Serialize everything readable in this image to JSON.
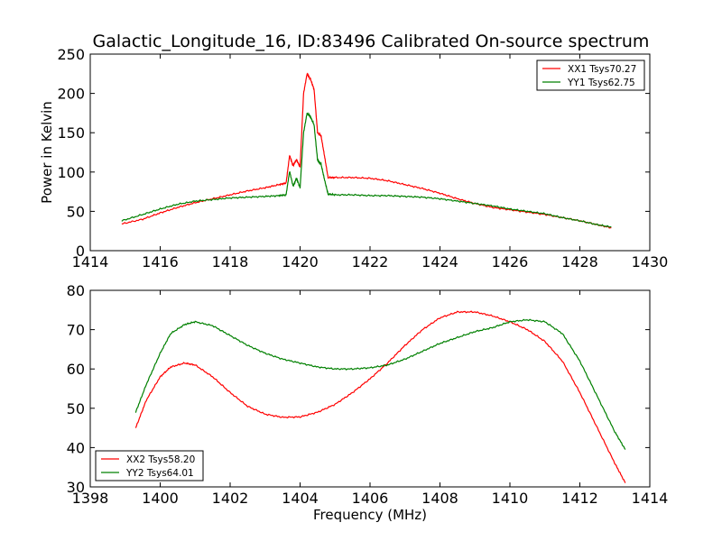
{
  "figure": {
    "title": "Galactic_Longitude_16, ID:83496 Calibrated On-source spectrum",
    "xlabel": "Frequency (MHz)"
  },
  "chart_data": [
    {
      "type": "line",
      "title": "Galactic_Longitude_16, ID:83496 Calibrated On-source spectrum",
      "xlabel": "",
      "ylabel": "Power in Kelvin",
      "xlim": [
        1414,
        1430
      ],
      "ylim": [
        0,
        250
      ],
      "xticks": [
        1414,
        1416,
        1418,
        1420,
        1422,
        1424,
        1426,
        1428,
        1430
      ],
      "yticks": [
        0,
        50,
        100,
        150,
        200,
        250
      ],
      "grid": false,
      "legend_position": "top-right",
      "series": [
        {
          "name": "XX1 Tsys70.27",
          "color": "#ff0000",
          "x": [
            1414.9,
            1415.5,
            1416.0,
            1416.5,
            1417.0,
            1417.5,
            1418.0,
            1418.5,
            1419.0,
            1419.4,
            1419.6,
            1419.7,
            1419.8,
            1419.9,
            1420.0,
            1420.1,
            1420.2,
            1420.3,
            1420.4,
            1420.5,
            1420.6,
            1420.7,
            1420.8,
            1421.0,
            1421.5,
            1422.0,
            1422.5,
            1423.0,
            1423.5,
            1424.0,
            1424.5,
            1425.0,
            1425.5,
            1426.0,
            1426.5,
            1427.0,
            1427.5,
            1428.0,
            1428.5,
            1428.9
          ],
          "y": [
            34,
            40,
            48,
            55,
            61,
            66,
            71,
            76,
            80,
            84,
            86,
            121,
            108,
            116,
            106,
            200,
            225,
            218,
            205,
            150,
            146,
            120,
            93,
            93,
            93,
            92,
            89,
            84,
            79,
            73,
            66,
            60,
            55,
            52,
            49,
            46,
            42,
            38,
            33,
            29
          ]
        },
        {
          "name": "YY1 Tsys62.75",
          "color": "#008000",
          "x": [
            1414.9,
            1415.5,
            1416.0,
            1416.5,
            1417.0,
            1417.5,
            1418.0,
            1418.5,
            1419.0,
            1419.4,
            1419.6,
            1419.7,
            1419.8,
            1419.9,
            1420.0,
            1420.1,
            1420.2,
            1420.3,
            1420.4,
            1420.5,
            1420.6,
            1420.7,
            1420.8,
            1421.0,
            1421.5,
            1422.0,
            1422.5,
            1423.0,
            1423.5,
            1424.0,
            1424.5,
            1425.0,
            1425.5,
            1426.0,
            1426.5,
            1427.0,
            1427.5,
            1428.0,
            1428.5,
            1428.9
          ],
          "y": [
            38,
            46,
            53,
            59,
            63,
            65,
            67,
            68,
            69,
            70,
            71,
            101,
            82,
            92,
            80,
            150,
            175,
            170,
            160,
            115,
            110,
            90,
            72,
            71,
            71,
            70,
            70,
            69,
            68,
            66,
            63,
            60,
            57,
            53,
            50,
            47,
            42,
            38,
            33,
            30
          ]
        }
      ]
    },
    {
      "type": "line",
      "title": "",
      "xlabel": "Frequency (MHz)",
      "ylabel": "",
      "xlim": [
        1398,
        1414
      ],
      "ylim": [
        30,
        80
      ],
      "xticks": [
        1398,
        1400,
        1402,
        1404,
        1406,
        1408,
        1410,
        1412,
        1414
      ],
      "yticks": [
        30,
        40,
        50,
        60,
        70,
        80
      ],
      "grid": false,
      "legend_position": "bottom-left",
      "series": [
        {
          "name": "XX2 Tsys58.20",
          "color": "#ff0000",
          "x": [
            1399.3,
            1399.6,
            1400.0,
            1400.3,
            1400.7,
            1401.0,
            1401.5,
            1402.0,
            1402.5,
            1403.0,
            1403.5,
            1404.0,
            1404.5,
            1405.0,
            1405.5,
            1406.0,
            1406.5,
            1407.0,
            1407.5,
            1408.0,
            1408.5,
            1409.0,
            1409.5,
            1410.0,
            1410.5,
            1411.0,
            1411.5,
            1412.0,
            1412.5,
            1413.0,
            1413.3
          ],
          "y": [
            45,
            52,
            58,
            60.5,
            61.5,
            61,
            58,
            54,
            50.5,
            48.5,
            47.7,
            47.8,
            49,
            51,
            54,
            57.5,
            61.5,
            66,
            70,
            73,
            74.5,
            74.5,
            73.5,
            72,
            70,
            67,
            62,
            54,
            45,
            36,
            31
          ]
        },
        {
          "name": "YY2 Tsys64.01",
          "color": "#008000",
          "x": [
            1399.3,
            1399.6,
            1400.0,
            1400.3,
            1400.7,
            1401.0,
            1401.5,
            1402.0,
            1402.5,
            1403.0,
            1403.5,
            1404.0,
            1404.5,
            1405.0,
            1405.5,
            1406.0,
            1406.5,
            1407.0,
            1407.5,
            1408.0,
            1408.5,
            1409.0,
            1409.5,
            1410.0,
            1410.5,
            1411.0,
            1411.5,
            1412.0,
            1412.5,
            1413.0,
            1413.3
          ],
          "y": [
            49,
            56,
            64,
            69,
            71.3,
            72,
            71,
            68.5,
            66,
            64,
            62.5,
            61.5,
            60.5,
            60,
            60,
            60.3,
            61,
            62.5,
            64.5,
            66.5,
            68,
            69.5,
            70.5,
            72,
            72.5,
            72,
            69,
            62,
            53,
            44,
            39.5
          ]
        }
      ]
    }
  ]
}
